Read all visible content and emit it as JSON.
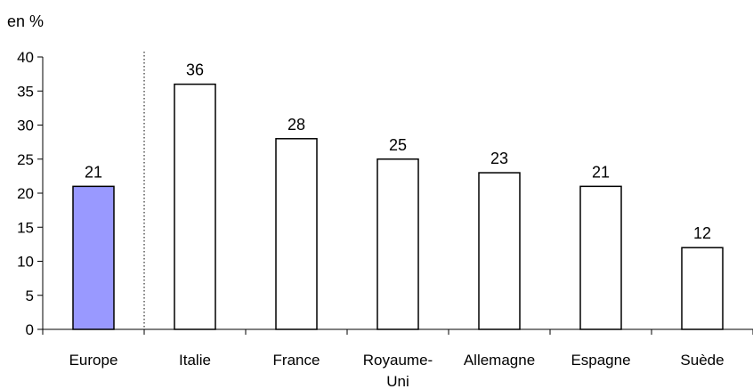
{
  "chart_data": {
    "type": "bar",
    "unit_label": "en %",
    "categories": [
      "Europe",
      "Italie",
      "France",
      "Royaume-Uni",
      "Allemagne",
      "Espagne",
      "Suède"
    ],
    "category_label_lines": [
      [
        "Europe"
      ],
      [
        "Italie"
      ],
      [
        "France"
      ],
      [
        "Royaume-",
        "Uni"
      ],
      [
        "Allemagne"
      ],
      [
        "Espagne"
      ],
      [
        "Suède"
      ]
    ],
    "values": [
      21,
      36,
      28,
      25,
      23,
      21,
      12
    ],
    "ylim": [
      0,
      40
    ],
    "yticks": [
      0,
      5,
      10,
      15,
      20,
      25,
      30,
      35,
      40
    ],
    "highlight_category": "Europe",
    "colors": {
      "highlight": "#9999ff",
      "bar": "#ffffff",
      "stroke": "#000000"
    },
    "separator_after_category": "Europe",
    "grid": false,
    "legend": "none"
  }
}
